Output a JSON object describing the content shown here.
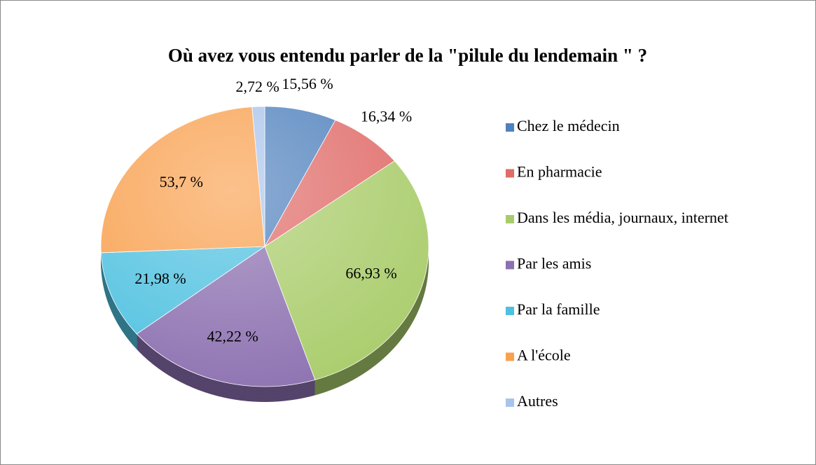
{
  "chart_data": {
    "type": "pie",
    "title": "Où avez vous entendu parler de la \"pilule du lendemain \" ?",
    "categories": [
      "Chez le médecin",
      "En pharmacie",
      "Dans les média, journaux, internet",
      "Par les amis",
      "Par la famille",
      "A l'école",
      "Autres"
    ],
    "values": [
      15.56,
      16.34,
      66.93,
      42.22,
      21.98,
      53.7,
      2.72
    ],
    "value_labels": [
      "15,56 %",
      "16,34 %",
      "66,93 %",
      "42,22 %",
      "21,98 %",
      "53,7 %",
      "2,72 %"
    ],
    "colors": [
      "#4f81bd",
      "#e06b68",
      "#a9cc6a",
      "#8c70b0",
      "#4fc1e0",
      "#f9a04e",
      "#a9c4ec"
    ],
    "legend": "right"
  }
}
